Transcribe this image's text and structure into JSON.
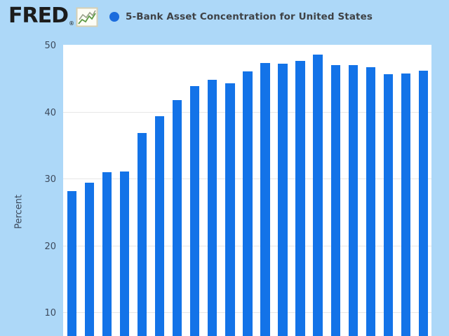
{
  "header": {
    "logo_text": "FRED",
    "registered_mark": "®",
    "series": {
      "label": "5-Bank Asset Concentration for United States"
    }
  },
  "colors": {
    "page_background": "#add8f8",
    "plot_background": "#ffffff",
    "bar": "#1373e8",
    "legend_dot": "#1b6cdd",
    "gridline": "#e7e7e7",
    "axis_text": "#3d4a5c",
    "title_text": "#3f4246",
    "logo_text": "#1c1c1c"
  },
  "chart_data": {
    "type": "bar",
    "title": "5-Bank Asset Concentration for United States",
    "xlabel": "",
    "ylabel": "Percent",
    "yticks": [
      50,
      40,
      30,
      20,
      10
    ],
    "ylim_visible": [
      6.5,
      50
    ],
    "grid": true,
    "legend_position": "top-left",
    "x_tick_labels_visible": false,
    "values": [
      28.1,
      29.4,
      30.9,
      31.0,
      36.8,
      39.3,
      41.7,
      43.8,
      44.8,
      44.2,
      46.0,
      47.3,
      47.2,
      47.6,
      48.5,
      47.0,
      47.0,
      46.7,
      45.6,
      45.7,
      46.1
    ]
  }
}
